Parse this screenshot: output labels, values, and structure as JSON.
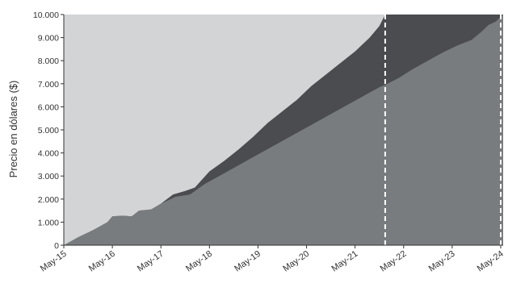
{
  "chart_data": {
    "type": "area",
    "title": "",
    "xlabel": "",
    "ylabel": "Precio en dólares ($)",
    "ylim": [
      0,
      10000
    ],
    "y_ticks": [
      0,
      1000,
      2000,
      3000,
      4000,
      5000,
      6000,
      7000,
      8000,
      9000,
      10000
    ],
    "y_tick_labels": [
      "0",
      "1.000",
      "2.000",
      "3.000",
      "4.000",
      "5.000",
      "6.000",
      "7.000",
      "8.000",
      "9.000",
      "10.000"
    ],
    "x_range": [
      2015.0,
      2024.05
    ],
    "x_ticks": [
      2015,
      2016,
      2017,
      2018,
      2019,
      2020,
      2021,
      2022,
      2023,
      2024
    ],
    "x_tick_labels": [
      "May-15",
      "May-16",
      "May-17",
      "May-18",
      "May-19",
      "May-20",
      "May-21",
      "May-22",
      "May-23",
      "May-24"
    ],
    "vertical_markers": [
      2021.62,
      2024.0
    ],
    "grid": false,
    "legend": "none",
    "colors": {
      "background_area": "#d3d4d5",
      "upper_area": "#4a4c4f",
      "lower_area": "#797c7f",
      "marker_line": "#ffffff",
      "axis": "#333333"
    },
    "series": [
      {
        "values": [
          [
            2015.0,
            0
          ],
          [
            2015.3,
            350
          ],
          [
            2015.6,
            650
          ],
          [
            2015.9,
            1000
          ],
          [
            2016.0,
            1250
          ],
          [
            2016.2,
            1280
          ],
          [
            2016.4,
            1250
          ],
          [
            2016.55,
            1500
          ],
          [
            2016.8,
            1550
          ],
          [
            2017.0,
            1800
          ],
          [
            2017.25,
            2200
          ],
          [
            2017.5,
            2350
          ],
          [
            2017.7,
            2500
          ],
          [
            2018.0,
            3200
          ],
          [
            2018.3,
            3650
          ],
          [
            2018.6,
            4150
          ],
          [
            2018.9,
            4700
          ],
          [
            2019.2,
            5300
          ],
          [
            2019.5,
            5800
          ],
          [
            2019.8,
            6300
          ],
          [
            2020.1,
            6900
          ],
          [
            2020.4,
            7400
          ],
          [
            2020.7,
            7900
          ],
          [
            2021.0,
            8400
          ],
          [
            2021.3,
            9000
          ],
          [
            2021.5,
            9500
          ],
          [
            2021.62,
            10000
          ]
        ]
      },
      {
        "values": [
          [
            2015.0,
            0
          ],
          [
            2015.3,
            350
          ],
          [
            2015.6,
            650
          ],
          [
            2015.9,
            1000
          ],
          [
            2016.0,
            1250
          ],
          [
            2016.2,
            1280
          ],
          [
            2016.4,
            1250
          ],
          [
            2016.55,
            1500
          ],
          [
            2016.8,
            1550
          ],
          [
            2017.0,
            1800
          ],
          [
            2017.3,
            2100
          ],
          [
            2017.6,
            2200
          ],
          [
            2017.9,
            2650
          ],
          [
            2018.2,
            3000
          ],
          [
            2018.5,
            3350
          ],
          [
            2018.8,
            3700
          ],
          [
            2019.1,
            4050
          ],
          [
            2019.4,
            4400
          ],
          [
            2019.7,
            4750
          ],
          [
            2020.0,
            5100
          ],
          [
            2020.3,
            5450
          ],
          [
            2020.6,
            5800
          ],
          [
            2020.9,
            6150
          ],
          [
            2021.2,
            6500
          ],
          [
            2021.5,
            6850
          ],
          [
            2021.62,
            6950
          ],
          [
            2021.9,
            7250
          ],
          [
            2022.2,
            7650
          ],
          [
            2022.5,
            8000
          ],
          [
            2022.8,
            8350
          ],
          [
            2023.1,
            8650
          ],
          [
            2023.4,
            8900
          ],
          [
            2023.6,
            9250
          ],
          [
            2023.75,
            9550
          ],
          [
            2023.9,
            9700
          ],
          [
            2024.0,
            9900
          ],
          [
            2024.05,
            10000
          ]
        ]
      }
    ]
  }
}
